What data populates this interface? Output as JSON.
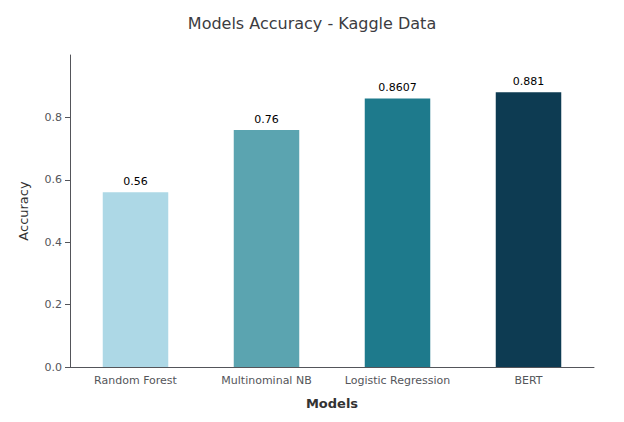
{
  "chart_data": {
    "type": "bar",
    "title": "Models Accuracy - Kaggle Data",
    "xlabel": "Models",
    "ylabel": "Accuracy",
    "categories": [
      "Random Forest",
      "Multinominal NB",
      "Logistic Regression",
      "BERT"
    ],
    "values": [
      0.56,
      0.76,
      0.8607,
      0.881
    ],
    "colors": [
      "#ADD8E6",
      "#5BA4B0",
      "#1E7A8C",
      "#0D3B52"
    ],
    "ylim": [
      0,
      1.0
    ],
    "yticks": [
      {
        "value": 0,
        "label": "0.0"
      },
      0.2,
      0.4,
      0.6,
      0.8
    ],
    "grid": false,
    "data_labels": true
  }
}
